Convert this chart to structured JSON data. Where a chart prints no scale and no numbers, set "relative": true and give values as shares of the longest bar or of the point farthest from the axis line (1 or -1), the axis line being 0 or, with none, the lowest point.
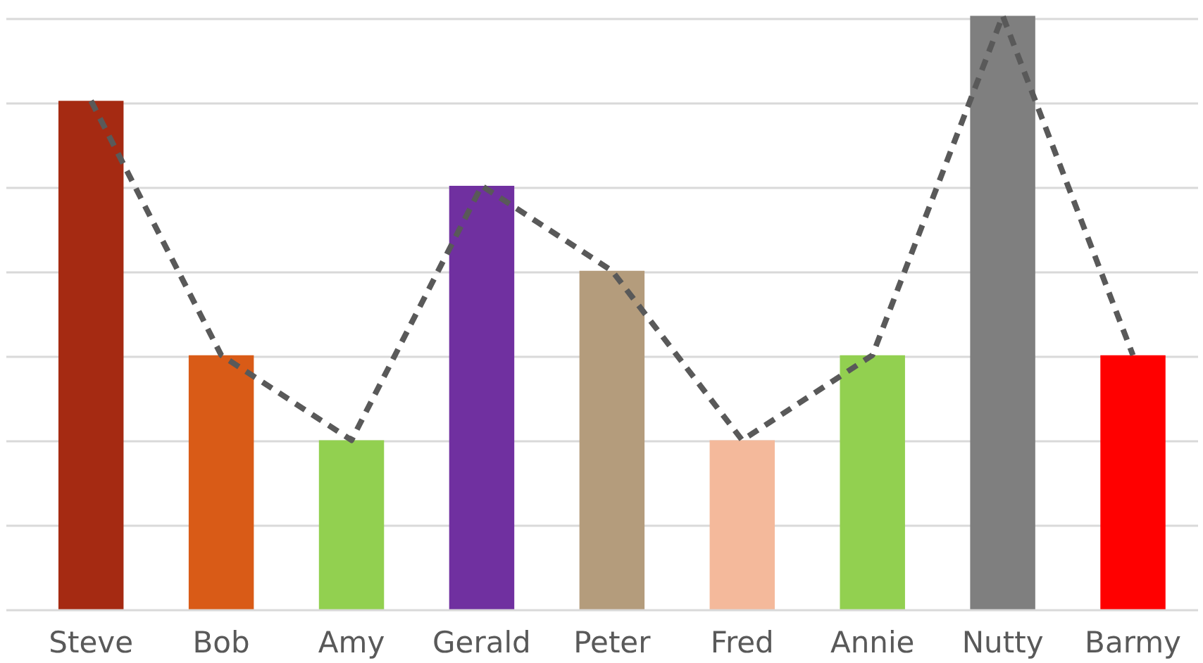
{
  "chart_data": {
    "type": "bar",
    "relative": true,
    "grid": "y",
    "categories": [
      "Steve",
      "Bob",
      "Amy",
      "Gerald",
      "Peter",
      "Fred",
      "Annie",
      "Nutty",
      "Barmy"
    ],
    "series": [
      {
        "colors": [
          "#a52a12",
          "#d95b17",
          "#92d050",
          "#7030a0",
          "#b49c7c",
          "#f4b99b",
          "#92d050",
          "#7f7f7f",
          "#ff0000"
        ],
        "values": [
          0.857,
          0.429,
          0.286,
          0.714,
          0.571,
          0.286,
          0.429,
          1,
          0.429
        ]
      },
      {
        "type": "line",
        "color": "#595959",
        "line_style": "dashed",
        "values": [
          0.857,
          0.429,
          0.286,
          0.714,
          0.571,
          0.286,
          0.429,
          1,
          0.429
        ]
      }
    ]
  }
}
